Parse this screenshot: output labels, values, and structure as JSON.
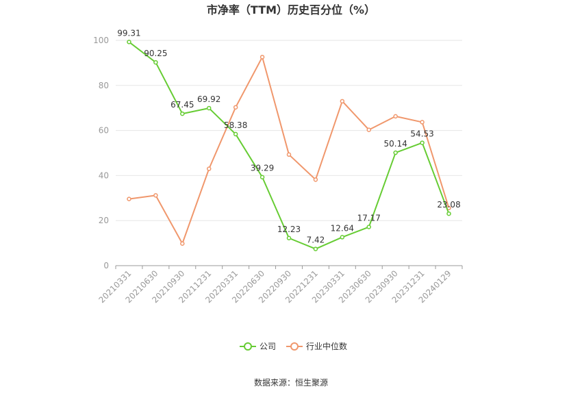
{
  "chart_data": {
    "type": "line",
    "title": "市净率（TTM）历史百分位（%）",
    "categories": [
      "20210331",
      "20210630",
      "20210930",
      "20211231",
      "20220331",
      "20220630",
      "20220930",
      "20221231",
      "20230331",
      "20230630",
      "20230930",
      "20231231",
      "20240129"
    ],
    "series": [
      {
        "name": "公司",
        "color": "#66cc33",
        "values": [
          99.31,
          90.25,
          67.45,
          69.92,
          58.38,
          39.29,
          12.23,
          7.42,
          12.64,
          17.17,
          50.14,
          54.53,
          23.08
        ],
        "labels": [
          "99.31",
          "90.25",
          "67.45",
          "69.92",
          "58.38",
          "39.29",
          "12.23",
          "7.42",
          "12.64",
          "17.17",
          "50.14",
          "54.53",
          "23.08"
        ]
      },
      {
        "name": "行业中位数",
        "color": "#f0976c",
        "values": [
          29.6,
          31.2,
          9.8,
          43.0,
          70.3,
          92.6,
          49.3,
          38.2,
          73.0,
          60.3,
          66.3,
          63.7,
          25.6
        ]
      }
    ],
    "yticks": [
      "0",
      "20",
      "40",
      "60",
      "80",
      "100"
    ],
    "ylim": [
      0,
      100
    ],
    "grid": true,
    "legend_position": "bottom-center"
  },
  "source": "数据来源：恒生聚源"
}
